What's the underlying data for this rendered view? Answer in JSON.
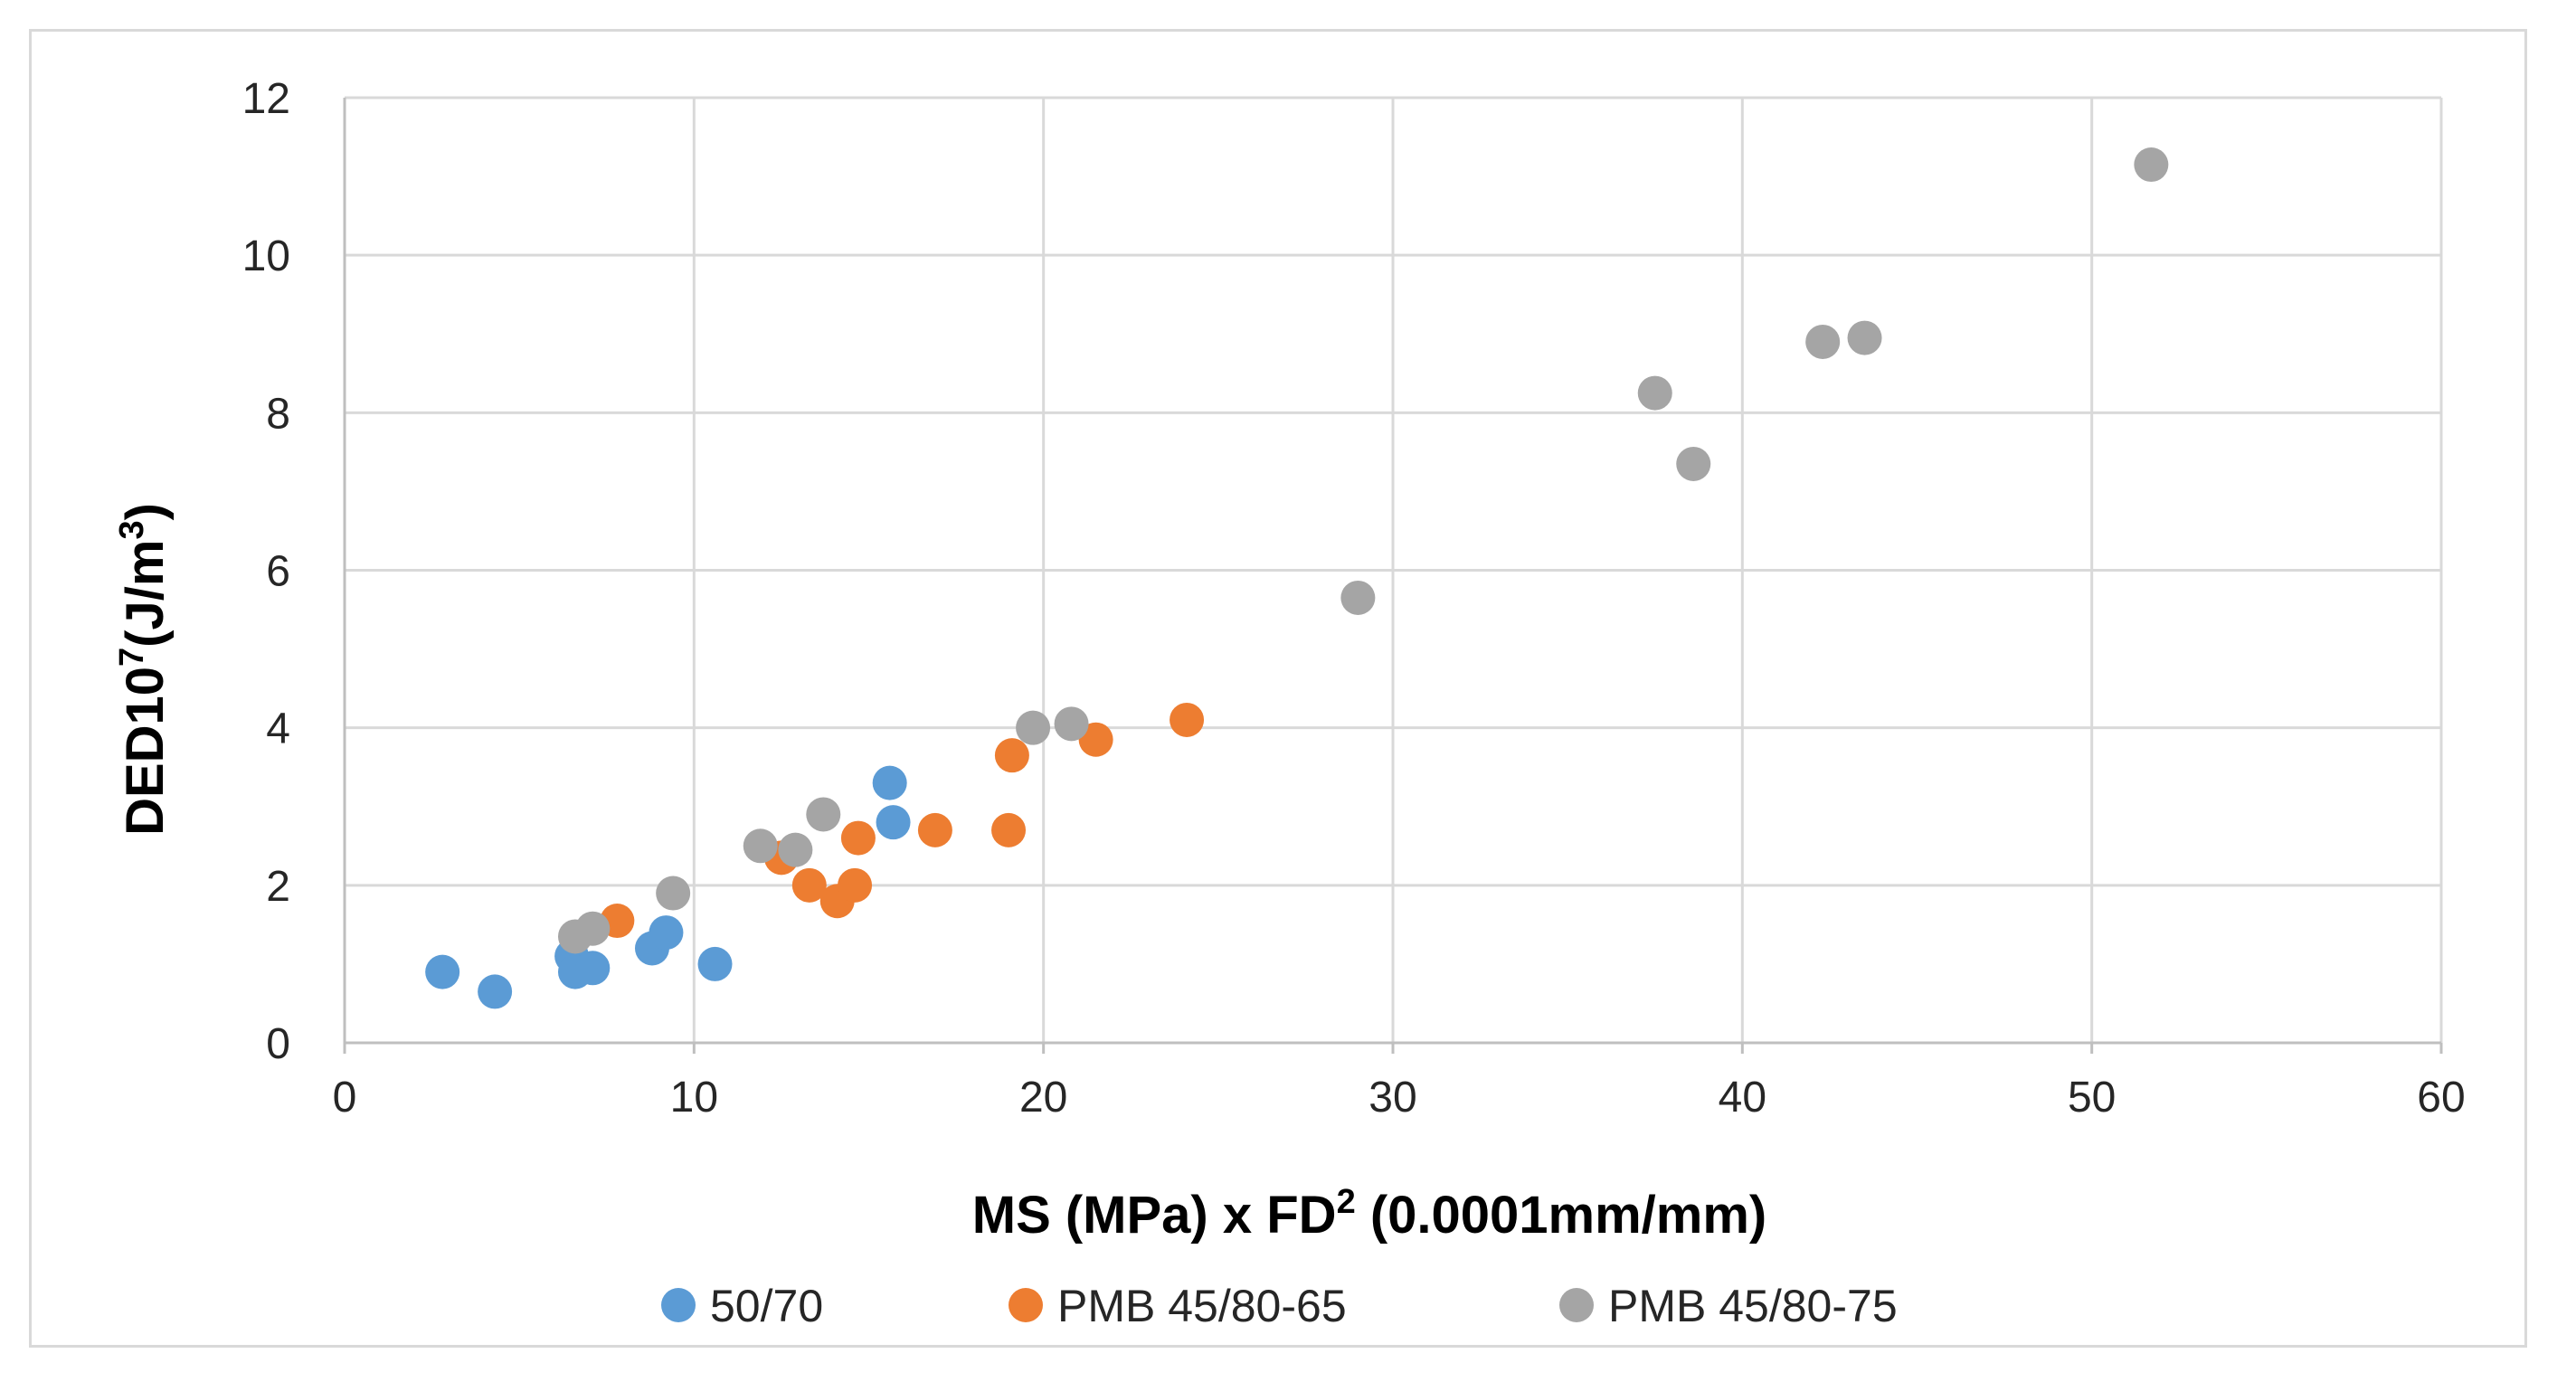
{
  "chart_data": {
    "type": "scatter",
    "title": "",
    "xlabel": {
      "main": "MS (MPa) x FD",
      "superscript": "2",
      "suffix": " (0.0001mm/mm)"
    },
    "ylabel": {
      "main": "DED10",
      "superscript": "7",
      "unit_main": "(J/m",
      "unit_superscript": "3",
      "unit_end": ")"
    },
    "xlim": [
      0,
      60
    ],
    "ylim": [
      0,
      12
    ],
    "xticks": [
      0,
      10,
      20,
      30,
      40,
      50,
      60
    ],
    "yticks": [
      0,
      2,
      4,
      6,
      8,
      10,
      12
    ],
    "grid": true,
    "legend_position": "bottom",
    "series": [
      {
        "name": "50/70",
        "color": "#5b9bd5",
        "points": [
          [
            2.8,
            0.9
          ],
          [
            4.3,
            0.65
          ],
          [
            6.5,
            1.1
          ],
          [
            6.6,
            0.9
          ],
          [
            7.1,
            0.95
          ],
          [
            8.8,
            1.2
          ],
          [
            9.2,
            1.4
          ],
          [
            10.6,
            1.0
          ],
          [
            15.6,
            3.3
          ],
          [
            15.7,
            2.8
          ]
        ]
      },
      {
        "name": "PMB 45/80-65",
        "color": "#ed7d31",
        "points": [
          [
            7.8,
            1.55
          ],
          [
            12.5,
            2.35
          ],
          [
            13.3,
            2.0
          ],
          [
            14.1,
            1.8
          ],
          [
            14.6,
            2.0
          ],
          [
            14.7,
            2.6
          ],
          [
            16.9,
            2.7
          ],
          [
            19.0,
            2.7
          ],
          [
            19.1,
            3.65
          ],
          [
            21.5,
            3.85
          ],
          [
            24.1,
            4.1
          ]
        ]
      },
      {
        "name": "PMB 45/80-75",
        "color": "#a5a5a5",
        "points": [
          [
            6.6,
            1.35
          ],
          [
            7.1,
            1.45
          ],
          [
            9.4,
            1.9
          ],
          [
            11.9,
            2.5
          ],
          [
            12.9,
            2.45
          ],
          [
            13.7,
            2.9
          ],
          [
            19.7,
            4.0
          ],
          [
            20.8,
            4.05
          ],
          [
            29.0,
            5.65
          ],
          [
            37.5,
            8.25
          ],
          [
            38.6,
            7.35
          ],
          [
            42.3,
            8.9
          ],
          [
            43.5,
            8.95
          ],
          [
            51.7,
            11.15
          ]
        ]
      }
    ]
  }
}
